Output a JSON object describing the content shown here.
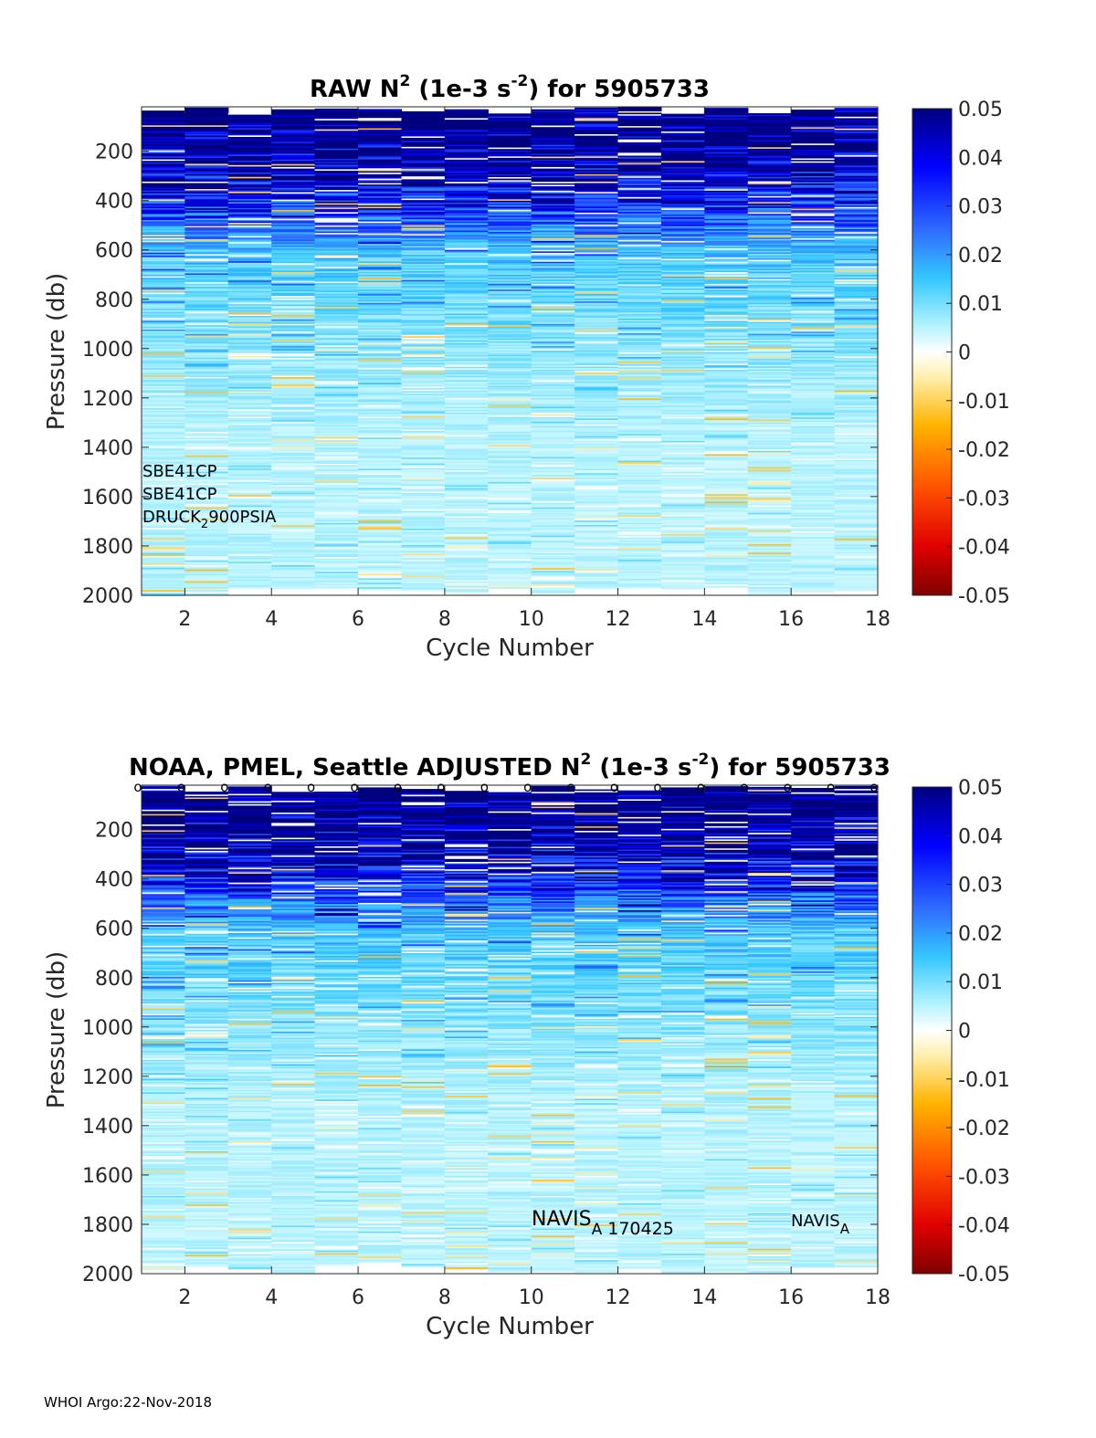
{
  "footer": "WHOI Argo:22-Nov-2018",
  "chart_data": [
    {
      "type": "heatmap",
      "title_main": "RAW N",
      "title_sup": "2",
      "title_mid": " (1e-3 s",
      "title_sup2": "-2",
      "title_end": ") for 5905733",
      "xlabel": "Cycle Number",
      "ylabel": "Pressure (db)",
      "x_ticks": [
        2,
        4,
        6,
        8,
        10,
        12,
        14,
        16,
        18
      ],
      "y_ticks": [
        200,
        400,
        600,
        800,
        1000,
        1200,
        1400,
        1600,
        1800,
        2000
      ],
      "xlim": [
        1,
        18
      ],
      "ylim": [
        20,
        2000
      ],
      "y_reversed": true,
      "cycles": [
        1,
        2,
        3,
        4,
        5,
        6,
        7,
        8,
        9,
        10,
        11,
        12,
        13,
        14,
        15,
        16,
        17
      ],
      "colorbar": {
        "ticks": [
          "0.05",
          "0.04",
          "0.03",
          "0.02",
          "0.01",
          "0",
          "-0.01",
          "-0.02",
          "-0.03",
          "-0.04",
          "-0.05"
        ],
        "range": [
          -0.05,
          0.05
        ],
        "colormap": "jet-white-centered"
      },
      "annotations": {
        "sensor1": "SBE41CP",
        "sensor2": "SBE41CP",
        "pressure_sensor_a": "DRUCK",
        "pressure_sensor_sub": "2",
        "pressure_sensor_b": "900PSIA"
      }
    },
    {
      "type": "heatmap",
      "title_main": "NOAA, PMEL, Seattle  ADJUSTED N",
      "title_sup": "2",
      "title_mid": " (1e-3 s",
      "title_sup2": "-2",
      "title_end": ") for 5905733",
      "xlabel": "Cycle Number",
      "ylabel": "Pressure (db)",
      "x_ticks": [
        2,
        4,
        6,
        8,
        10,
        12,
        14,
        16,
        18
      ],
      "y_ticks": [
        200,
        400,
        600,
        800,
        1000,
        1200,
        1400,
        1600,
        1800,
        2000
      ],
      "xlim": [
        1,
        18
      ],
      "ylim": [
        20,
        2000
      ],
      "y_reversed": true,
      "cycles": [
        1,
        2,
        3,
        4,
        5,
        6,
        7,
        8,
        9,
        10,
        11,
        12,
        13,
        14,
        15,
        16,
        17
      ],
      "qc_marker": "o",
      "qc_cycles": [
        1,
        2,
        3,
        4,
        5,
        6,
        7,
        8,
        9,
        10,
        11,
        12,
        13,
        14,
        15,
        16,
        17,
        18
      ],
      "colorbar": {
        "ticks": [
          "0.05",
          "0.04",
          "0.03",
          "0.02",
          "0.01",
          "0",
          "-0.01",
          "-0.02",
          "-0.03",
          "-0.04",
          "-0.05"
        ],
        "range": [
          -0.05,
          0.05
        ],
        "colormap": "jet-white-centered"
      },
      "annotations": {
        "navis1_a": "NAVIS",
        "navis1_sub": "A",
        "navis1_b": "170425",
        "navis1_cycle": 10,
        "navis1_pressure": 1830,
        "navis2_a": "NAVIS",
        "navis2_sub": "A",
        "navis2_cycle": 16,
        "navis2_pressure": 1830
      }
    }
  ]
}
